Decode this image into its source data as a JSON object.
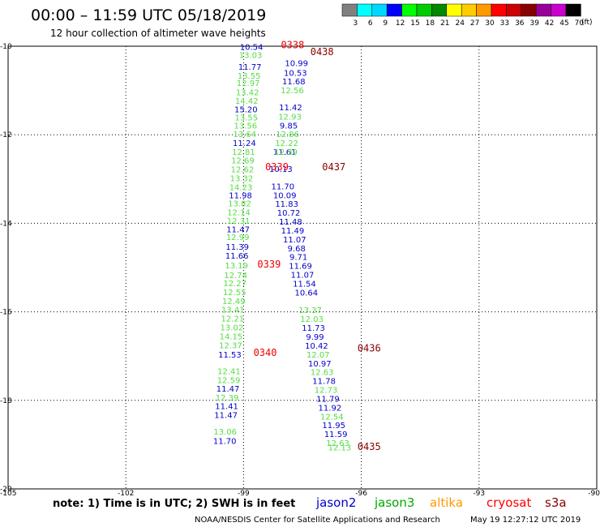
{
  "header": {
    "title": "00:00 – 11:59 UTC 05/18/2019",
    "subtitle": "12 hour collection of altimeter wave heights"
  },
  "colorbar": {
    "labels": [
      "3",
      "6",
      "9",
      "12",
      "15",
      "18",
      "21",
      "24",
      "27",
      "30",
      "33",
      "36",
      "39",
      "42",
      "45",
      "70"
    ],
    "unit": "(ft)",
    "colors": [
      "#808080",
      "#00ffff",
      "#00d8ff",
      "#0000ff",
      "#00ff00",
      "#00cc00",
      "#008800",
      "#ffff00",
      "#ffcc00",
      "#ff9900",
      "#ff0000",
      "#cc0000",
      "#880000",
      "#990099",
      "#cc00cc",
      "#000000"
    ]
  },
  "footer": {
    "note": "note:  1) Time is in UTC;  2) SWH is in feet",
    "legend": [
      {
        "label": "jason2",
        "color": "#0000cc"
      },
      {
        "label": "jason3",
        "color": "#00aa00"
      },
      {
        "label": "altika",
        "color": "#ff9900"
      },
      {
        "label": "cryosat",
        "color": "#ff0000"
      },
      {
        "label": "s3a",
        "color": "#880000"
      }
    ],
    "credit": "NOAA/NESDIS Center for Satellite Applications and Research",
    "timestamp": "May 19 12:27:12 UTC 2019"
  },
  "chart_data": {
    "type": "scatter",
    "xlim": [
      -105,
      -90
    ],
    "ylim": [
      -20,
      -10
    ],
    "xticks": [
      -105,
      -102,
      -99,
      -96,
      -93,
      -90
    ],
    "yticks": [
      -10,
      -12,
      -14,
      -16,
      -18,
      -20
    ],
    "xtick_labels": [
      "-105",
      "-102",
      "-99",
      "-96",
      "-93",
      "-90"
    ],
    "ytick_labels": [
      "-10",
      "-12",
      "-14",
      "-16",
      "-18",
      "-20"
    ],
    "grid": true,
    "series": [
      {
        "name": "jason3",
        "color": "#55dd44",
        "points": [
          {
            "lon": -98.82,
            "lat": -10.27,
            "v": "13.03"
          },
          {
            "lon": -98.86,
            "lat": -10.73,
            "v": "13.55"
          },
          {
            "lon": -98.88,
            "lat": -10.9,
            "v": "12.97"
          },
          {
            "lon": -98.9,
            "lat": -11.11,
            "v": "13.42"
          },
          {
            "lon": -98.92,
            "lat": -11.3,
            "v": "14.42"
          },
          {
            "lon": -98.93,
            "lat": -11.68,
            "v": "13.55"
          },
          {
            "lon": -98.95,
            "lat": -11.86,
            "v": "13.56"
          },
          {
            "lon": -98.97,
            "lat": -12.05,
            "v": "13.64"
          },
          {
            "lon": -99.0,
            "lat": -12.45,
            "v": "12.81"
          },
          {
            "lon": -99.02,
            "lat": -12.65,
            "v": "12.69"
          },
          {
            "lon": -99.03,
            "lat": -12.85,
            "v": "12.62"
          },
          {
            "lon": -99.05,
            "lat": -13.05,
            "v": "13.32"
          },
          {
            "lon": -99.07,
            "lat": -13.25,
            "v": "14.23"
          },
          {
            "lon": -99.1,
            "lat": -13.62,
            "v": "13.82"
          },
          {
            "lon": -99.12,
            "lat": -13.82,
            "v": "12.14"
          },
          {
            "lon": -99.13,
            "lat": -14.01,
            "v": "12.31"
          },
          {
            "lon": -99.15,
            "lat": -14.38,
            "v": "12.99"
          },
          {
            "lon": -99.18,
            "lat": -15.02,
            "v": "13.19"
          },
          {
            "lon": -99.2,
            "lat": -15.24,
            "v": "12.74"
          },
          {
            "lon": -99.22,
            "lat": -15.42,
            "v": "12.27"
          },
          {
            "lon": -99.23,
            "lat": -15.62,
            "v": "12.55"
          },
          {
            "lon": -99.25,
            "lat": -15.82,
            "v": "12.49"
          },
          {
            "lon": -99.27,
            "lat": -16.02,
            "v": "13.41"
          },
          {
            "lon": -99.28,
            "lat": -16.22,
            "v": "12.21"
          },
          {
            "lon": -99.3,
            "lat": -16.42,
            "v": "13.02"
          },
          {
            "lon": -99.32,
            "lat": -16.62,
            "v": "14.15"
          },
          {
            "lon": -99.33,
            "lat": -16.82,
            "v": "12.37"
          },
          {
            "lon": -99.37,
            "lat": -17.41,
            "v": "12.41"
          },
          {
            "lon": -99.38,
            "lat": -17.61,
            "v": "12.59"
          },
          {
            "lon": -99.42,
            "lat": -18.0,
            "v": "12.39"
          },
          {
            "lon": -99.47,
            "lat": -18.77,
            "v": "13.06"
          }
        ]
      },
      {
        "name": "jason2",
        "color": "#0000cc",
        "points": [
          {
            "lon": -98.8,
            "lat": -10.08,
            "v": "10.54"
          },
          {
            "lon": -98.84,
            "lat": -10.53,
            "v": "11.77"
          },
          {
            "lon": -98.94,
            "lat": -11.49,
            "v": "15.20"
          },
          {
            "lon": -98.98,
            "lat": -12.25,
            "v": "11.24"
          },
          {
            "lon": -99.08,
            "lat": -13.43,
            "v": "11.98"
          },
          {
            "lon": -99.14,
            "lat": -14.2,
            "v": "11.47"
          },
          {
            "lon": -99.16,
            "lat": -14.6,
            "v": "11.39"
          },
          {
            "lon": -99.17,
            "lat": -14.8,
            "v": "11.66"
          },
          {
            "lon": -99.35,
            "lat": -17.03,
            "v": "11.53"
          },
          {
            "lon": -99.4,
            "lat": -17.8,
            "v": "11.47"
          },
          {
            "lon": -99.43,
            "lat": -18.2,
            "v": "11.41"
          },
          {
            "lon": -99.45,
            "lat": -18.4,
            "v": "11.47"
          },
          {
            "lon": -99.48,
            "lat": -18.98,
            "v": "11.70"
          },
          {
            "lon": -97.65,
            "lat": -10.45,
            "v": "10.99"
          },
          {
            "lon": -97.68,
            "lat": -10.67,
            "v": "10.53"
          },
          {
            "lon": -97.72,
            "lat": -10.86,
            "v": "11.68"
          },
          {
            "lon": -97.8,
            "lat": -11.45,
            "v": "11.42"
          },
          {
            "lon": -97.85,
            "lat": -11.86,
            "v": "9.85"
          },
          {
            "lon": -97.95,
            "lat": -12.45,
            "v": "11.61"
          },
          {
            "lon": -98.05,
            "lat": -12.84,
            "v": "10.13"
          },
          {
            "lon": -98.0,
            "lat": -13.23,
            "v": "11.70"
          },
          {
            "lon": -97.95,
            "lat": -13.43,
            "v": "10.09"
          },
          {
            "lon": -97.9,
            "lat": -13.63,
            "v": "11.83"
          },
          {
            "lon": -97.85,
            "lat": -13.83,
            "v": "10.72"
          },
          {
            "lon": -97.8,
            "lat": -14.03,
            "v": "11.48"
          },
          {
            "lon": -97.75,
            "lat": -14.23,
            "v": "11.49"
          },
          {
            "lon": -97.7,
            "lat": -14.43,
            "v": "11.07"
          },
          {
            "lon": -97.65,
            "lat": -14.63,
            "v": "9.68"
          },
          {
            "lon": -97.6,
            "lat": -14.83,
            "v": "9.71"
          },
          {
            "lon": -97.55,
            "lat": -15.03,
            "v": "11.69"
          },
          {
            "lon": -97.5,
            "lat": -15.23,
            "v": "11.07"
          },
          {
            "lon": -97.45,
            "lat": -15.43,
            "v": "11.54"
          },
          {
            "lon": -97.4,
            "lat": -15.63,
            "v": "10.64"
          },
          {
            "lon": -97.22,
            "lat": -16.43,
            "v": "11.73"
          },
          {
            "lon": -97.18,
            "lat": -16.63,
            "v": "9.99"
          },
          {
            "lon": -97.14,
            "lat": -16.83,
            "v": "10.42"
          },
          {
            "lon": -97.06,
            "lat": -17.23,
            "v": "10.97"
          },
          {
            "lon": -96.95,
            "lat": -17.63,
            "v": "11.78"
          },
          {
            "lon": -96.85,
            "lat": -18.03,
            "v": "11.79"
          },
          {
            "lon": -96.8,
            "lat": -18.23,
            "v": "11.92"
          },
          {
            "lon": -96.7,
            "lat": -18.63,
            "v": "11.95"
          },
          {
            "lon": -96.65,
            "lat": -18.83,
            "v": "11.59"
          }
        ]
      },
      {
        "name": "jason3",
        "color": "#55dd44",
        "points": [
          {
            "lon": -97.76,
            "lat": -11.06,
            "v": "12.56"
          },
          {
            "lon": -97.82,
            "lat": -11.66,
            "v": "12.93"
          },
          {
            "lon": -97.88,
            "lat": -12.05,
            "v": "12.86"
          },
          {
            "lon": -97.9,
            "lat": -12.25,
            "v": "12.22"
          },
          {
            "lon": -97.92,
            "lat": -12.45,
            "v": "12.39"
          },
          {
            "lon": -97.3,
            "lat": -16.03,
            "v": "13.37"
          },
          {
            "lon": -97.26,
            "lat": -16.23,
            "v": "12.03"
          },
          {
            "lon": -97.1,
            "lat": -17.03,
            "v": "12.07"
          },
          {
            "lon": -97.0,
            "lat": -17.43,
            "v": "12.63"
          },
          {
            "lon": -96.9,
            "lat": -17.83,
            "v": "12.73"
          },
          {
            "lon": -96.75,
            "lat": -18.43,
            "v": "12.54"
          },
          {
            "lon": -96.6,
            "lat": -19.03,
            "v": "12.63"
          },
          {
            "lon": -96.55,
            "lat": -19.13,
            "v": "12.13"
          }
        ]
      }
    ],
    "pass_labels": [
      {
        "lon": -97.75,
        "lat": -10.05,
        "text": "0338",
        "color": "#ee0000"
      },
      {
        "lon": -97.0,
        "lat": -10.2,
        "text": "0438",
        "color": "#880000"
      },
      {
        "lon": -98.15,
        "lat": -12.8,
        "text": "0339",
        "color": "#ee0000"
      },
      {
        "lon": -96.7,
        "lat": -12.8,
        "text": "0437",
        "color": "#880000"
      },
      {
        "lon": -98.35,
        "lat": -15.0,
        "text": "0339",
        "color": "#ee0000"
      },
      {
        "lon": -98.45,
        "lat": -17.0,
        "text": "0340",
        "color": "#ee0000"
      },
      {
        "lon": -95.8,
        "lat": -16.9,
        "text": "0436",
        "color": "#880000"
      },
      {
        "lon": -95.8,
        "lat": -19.12,
        "text": "0435",
        "color": "#880000"
      }
    ]
  }
}
